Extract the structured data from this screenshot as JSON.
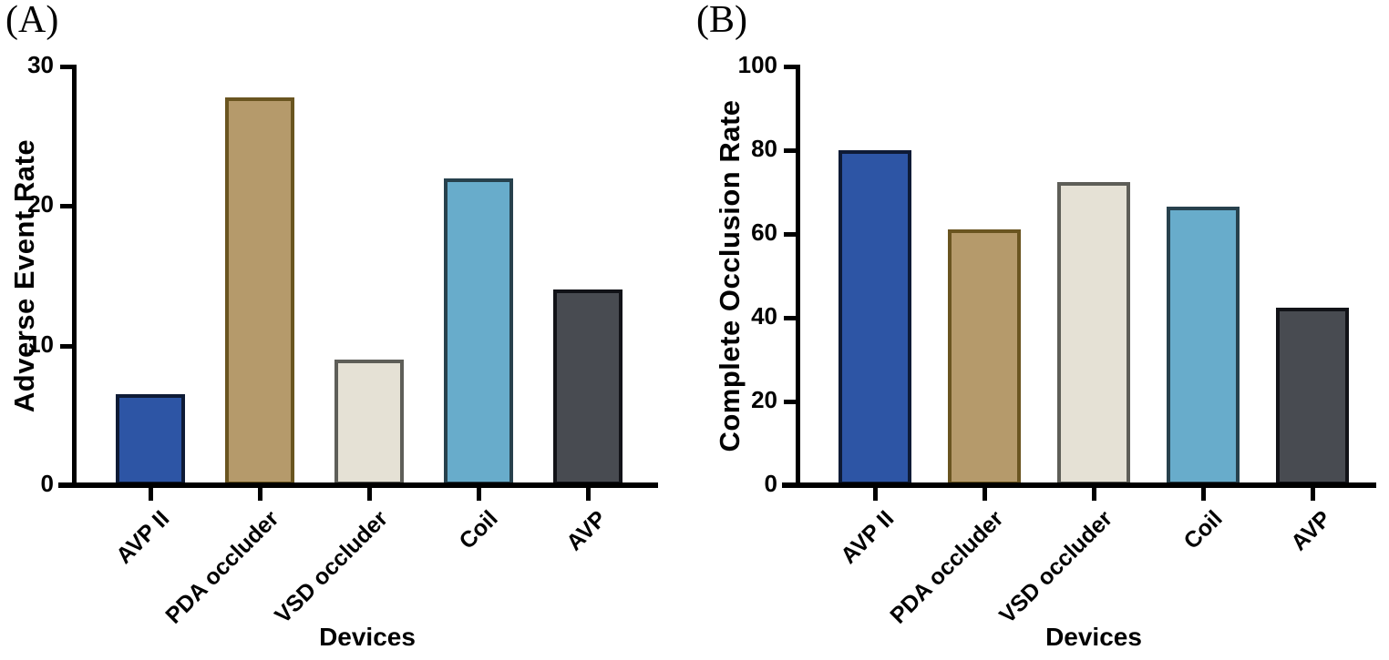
{
  "background": "#ffffff",
  "axis_color": "#000000",
  "chart_data": [
    {
      "type": "bar",
      "panel_label": "(A)",
      "title": "",
      "ylabel": "Adverse Event Rate",
      "xlabel": "Devices",
      "categories": [
        "AVP II",
        "PDA occluder",
        "VSD occluder",
        "Coil",
        "AVP"
      ],
      "values": [
        6.5,
        27.8,
        9,
        22,
        14
      ],
      "ylim": [
        0,
        30
      ],
      "yticks": [
        0,
        10,
        20,
        30
      ],
      "grid": false,
      "legend": false,
      "bar_fill_colors": [
        "#2d55a5",
        "#b59a6b",
        "#e5e1d5",
        "#68accb",
        "#484b51"
      ],
      "bar_border_colors": [
        "#0e1b36",
        "#6a5520",
        "#5e5e58",
        "#27414d",
        "#121318"
      ]
    },
    {
      "type": "bar",
      "panel_label": "(B)",
      "title": "",
      "ylabel": "Complete Occlusion Rate",
      "xlabel": "Devices",
      "categories": [
        "AVP II",
        "PDA occluder",
        "VSD occluder",
        "Coil",
        "AVP"
      ],
      "values": [
        80,
        61,
        72.5,
        66.5,
        42.5
      ],
      "ylim": [
        0,
        100
      ],
      "yticks": [
        0,
        20,
        40,
        60,
        80,
        100
      ],
      "grid": false,
      "legend": false,
      "bar_fill_colors": [
        "#2d55a5",
        "#b59a6b",
        "#e5e1d5",
        "#68accb",
        "#484b51"
      ],
      "bar_border_colors": [
        "#0e1b36",
        "#6a5520",
        "#5e5e58",
        "#27414d",
        "#121318"
      ]
    }
  ]
}
